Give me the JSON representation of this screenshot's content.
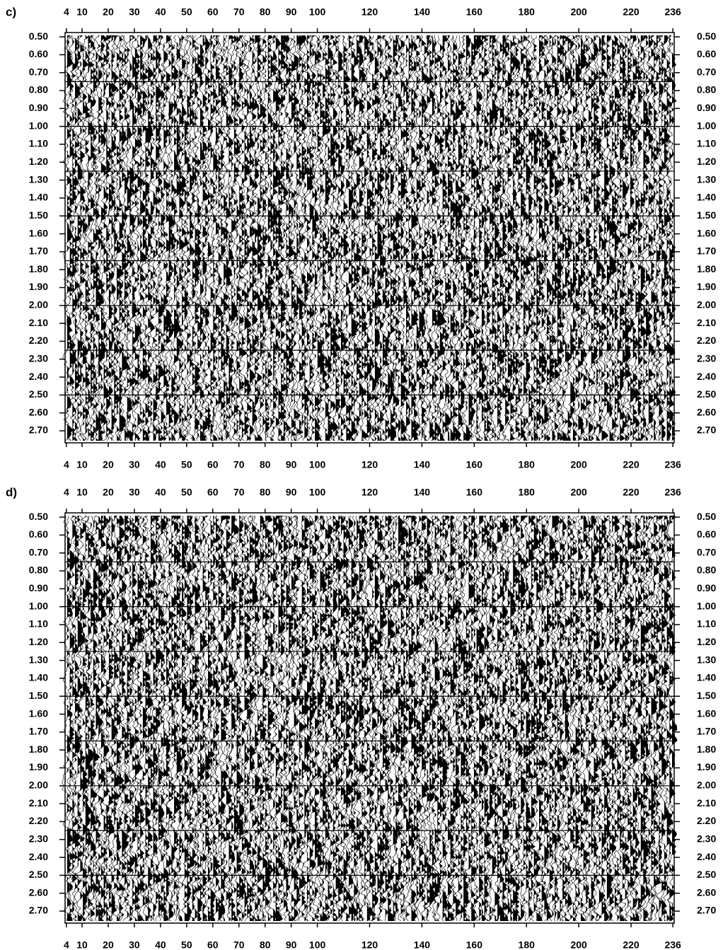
{
  "chart_data": [
    {
      "type": "seismic",
      "title": "c)",
      "xlim": [
        3.5,
        236.5
      ],
      "xticks": [
        4,
        10,
        20,
        30,
        40,
        50,
        60,
        70,
        80,
        90,
        100,
        120,
        140,
        160,
        180,
        200,
        220,
        236
      ],
      "ylim": [
        0.476,
        2.767
      ],
      "yticks": [
        {
          "value": 0.5,
          "label": "0.50"
        },
        {
          "value": 0.6,
          "label": "0.60"
        },
        {
          "value": 0.7,
          "label": "0.70"
        },
        {
          "value": 0.8,
          "label": "0.80"
        },
        {
          "value": 0.9,
          "label": "0.90"
        },
        {
          "value": 1.0,
          "label": "1.00"
        },
        {
          "value": 1.1,
          "label": "1.10"
        },
        {
          "value": 1.2,
          "label": "1.20"
        },
        {
          "value": 1.3,
          "label": "1.30"
        },
        {
          "value": 1.4,
          "label": "1.40"
        },
        {
          "value": 1.5,
          "label": "1.50"
        },
        {
          "value": 1.6,
          "label": "1.60"
        },
        {
          "value": 1.7,
          "label": "1.70"
        },
        {
          "value": 1.8,
          "label": "1.80"
        },
        {
          "value": 1.9,
          "label": "1.90"
        },
        {
          "value": 2.0,
          "label": "2.00"
        },
        {
          "value": 2.1,
          "label": "2.10"
        },
        {
          "value": 2.2,
          "label": "2.20"
        },
        {
          "value": 2.3,
          "label": "2.30"
        },
        {
          "value": 2.4,
          "label": "2.40"
        },
        {
          "value": 2.5,
          "label": "2.50"
        },
        {
          "value": 2.6,
          "label": "2.60"
        },
        {
          "value": 2.7,
          "label": "2.70"
        }
      ],
      "inverted_y": true,
      "hlines": [
        0.75,
        1.0,
        1.25,
        1.5,
        1.75,
        2.0,
        2.25,
        2.5
      ]
    },
    {
      "type": "seismic",
      "title": "d)",
      "xlim": [
        3.5,
        236.5
      ],
      "xticks": [
        4,
        10,
        20,
        30,
        40,
        50,
        60,
        70,
        80,
        90,
        100,
        120,
        140,
        160,
        180,
        200,
        220,
        236
      ],
      "ylim": [
        0.476,
        2.767
      ],
      "yticks": [
        {
          "value": 0.5,
          "label": "0.50"
        },
        {
          "value": 0.6,
          "label": "0.60"
        },
        {
          "value": 0.7,
          "label": "0.70"
        },
        {
          "value": 0.8,
          "label": "0.80"
        },
        {
          "value": 0.9,
          "label": "0.90"
        },
        {
          "value": 1.0,
          "label": "1.00"
        },
        {
          "value": 1.1,
          "label": "1.10"
        },
        {
          "value": 1.2,
          "label": "1.20"
        },
        {
          "value": 1.3,
          "label": "1.30"
        },
        {
          "value": 1.4,
          "label": "1.40"
        },
        {
          "value": 1.5,
          "label": "1.50"
        },
        {
          "value": 1.6,
          "label": "1.60"
        },
        {
          "value": 1.7,
          "label": "1.70"
        },
        {
          "value": 1.8,
          "label": "1.80"
        },
        {
          "value": 1.9,
          "label": "1.90"
        },
        {
          "value": 2.0,
          "label": "2.00"
        },
        {
          "value": 2.1,
          "label": "2.10"
        },
        {
          "value": 2.2,
          "label": "2.20"
        },
        {
          "value": 2.3,
          "label": "2.30"
        },
        {
          "value": 2.4,
          "label": "2.40"
        },
        {
          "value": 2.5,
          "label": "2.50"
        },
        {
          "value": 2.6,
          "label": "2.60"
        },
        {
          "value": 2.7,
          "label": "2.70"
        }
      ],
      "inverted_y": true,
      "hlines": [
        0.75,
        1.0,
        1.25,
        1.5,
        1.75,
        2.0,
        2.25,
        2.5
      ]
    }
  ]
}
